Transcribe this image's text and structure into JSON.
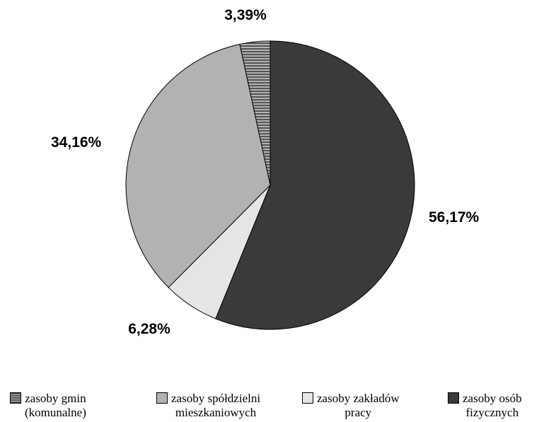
{
  "chart_data": {
    "type": "pie",
    "slices": [
      {
        "label": "zasoby gmin\n(komunalne)",
        "value": 3.39,
        "value_label": "3,39%",
        "color": "#6e6e6e",
        "pattern": "horizontal-stripes"
      },
      {
        "label": "zasoby spółdzielni\nmieszkaniowych",
        "value": 34.16,
        "value_label": "34,16%",
        "color": "#b2b2b2",
        "pattern": "solid"
      },
      {
        "label": "zasoby zakładów\npracy",
        "value": 6.28,
        "value_label": "6,28%",
        "color": "#e5e5e5",
        "pattern": "solid"
      },
      {
        "label": "zasoby osób\nfizycznych",
        "value": 56.17,
        "value_label": "56,17%",
        "color": "#3a3a3a",
        "pattern": "solid"
      }
    ],
    "legend_position": "bottom"
  }
}
